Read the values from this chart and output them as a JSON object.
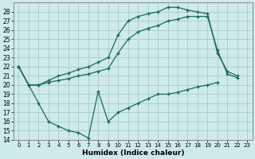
{
  "xlabel": "Humidex (Indice chaleur)",
  "bg_color": "#ceeaea",
  "grid_color": "#b8d8d8",
  "line_color": "#1a6b5a",
  "xlim": [
    -0.5,
    23.5
  ],
  "ylim": [
    14,
    29
  ],
  "xticks": [
    0,
    1,
    2,
    3,
    4,
    5,
    6,
    7,
    8,
    9,
    10,
    11,
    12,
    13,
    14,
    15,
    16,
    17,
    18,
    19,
    20,
    21,
    22,
    23
  ],
  "yticks": [
    14,
    15,
    16,
    17,
    18,
    19,
    20,
    21,
    22,
    23,
    24,
    25,
    26,
    27,
    28
  ],
  "series": [
    {
      "x": [
        0,
        1,
        2,
        3,
        4,
        5,
        6,
        7,
        8,
        9,
        10,
        11,
        12,
        13,
        14,
        15,
        16,
        17,
        18,
        19,
        20,
        21,
        22
      ],
      "y": [
        22,
        20,
        18,
        16,
        15.5,
        15,
        14.8,
        14.2,
        19.3,
        16,
        17,
        17.5,
        18,
        18.5,
        19,
        19,
        19.2,
        19.5,
        19.8,
        20,
        20.3,
        null,
        null
      ]
    },
    {
      "x": [
        0,
        1,
        2,
        3,
        4,
        5,
        6,
        7,
        8,
        9,
        10,
        11,
        12,
        13,
        14,
        15,
        16,
        17,
        18,
        19,
        20,
        21,
        22
      ],
      "y": [
        22,
        20,
        20,
        20.3,
        20.5,
        20.7,
        21,
        21.2,
        21.5,
        21.8,
        23.5,
        25,
        25.8,
        26.2,
        26.5,
        27,
        27.2,
        27.5,
        27.5,
        27.5,
        23.8,
        21.2,
        20.8
      ]
    },
    {
      "x": [
        0,
        1,
        2,
        3,
        4,
        5,
        6,
        7,
        8,
        9,
        10,
        11,
        12,
        13,
        14,
        15,
        16,
        17,
        18,
        19,
        20,
        21,
        22
      ],
      "y": [
        22,
        20,
        20,
        20.5,
        21,
        21.3,
        21.7,
        22,
        22.5,
        23,
        25.5,
        27,
        27.5,
        27.8,
        28,
        28.5,
        28.5,
        28.2,
        28,
        27.8,
        23.5,
        21.5,
        21
      ]
    }
  ]
}
